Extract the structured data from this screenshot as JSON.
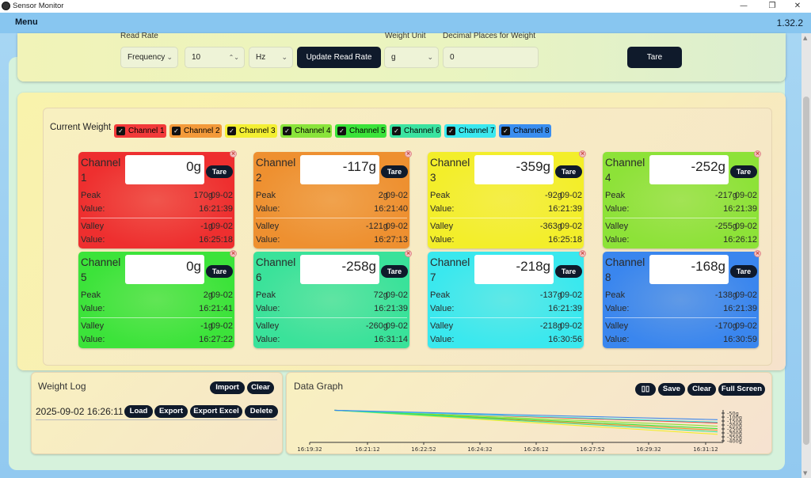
{
  "window": {
    "title": "Sensor Monitor",
    "minimize": "—",
    "restore": "❐",
    "close": "✕"
  },
  "menu": {
    "label": "Menu",
    "version": "1.32.2"
  },
  "settings": {
    "read_rate_label": "Read Rate",
    "mode_value": "Frequency",
    "rate_value": "10",
    "unit_value": "Hz",
    "update_button": "Update Read Rate",
    "weight_unit_label": "Weight Unit",
    "weight_unit_value": "g",
    "decimal_label": "Decimal Places for Weight",
    "decimal_value": "0",
    "tare_button": "Tare"
  },
  "current_weight": {
    "title": "Current Weight",
    "toggles": [
      {
        "label": "Channel 1",
        "color": "#f23a3a"
      },
      {
        "label": "Channel 2",
        "color": "#f39a3a"
      },
      {
        "label": "Channel 3",
        "color": "#f3ef33"
      },
      {
        "label": "Channel 4",
        "color": "#8ae43a"
      },
      {
        "label": "Channel 5",
        "color": "#3be33a"
      },
      {
        "label": "Channel 6",
        "color": "#3be3a0"
      },
      {
        "label": "Channel 7",
        "color": "#3be8ef"
      },
      {
        "label": "Channel 8",
        "color": "#3a8ef0"
      }
    ],
    "peak_label": "Peak",
    "valley_label": "Valley",
    "value_label": "Value:",
    "tare_label": "Tare",
    "channels": [
      {
        "name": "Channel 1",
        "value": "0g",
        "peak_val": "170g",
        "peak_date": "09-02",
        "peak_time": "16:21:39",
        "valley_val": "-1g",
        "valley_date": "09-02",
        "valley_time": "16:25:18",
        "color": "#ee2f2f"
      },
      {
        "name": "Channel 2",
        "value": "-117g",
        "peak_val": "2g",
        "peak_date": "09-02",
        "peak_time": "16:21:40",
        "valley_val": "-121g",
        "valley_date": "09-02",
        "valley_time": "16:27:13",
        "color": "#ee9030"
      },
      {
        "name": "Channel 3",
        "value": "-359g",
        "peak_val": "-92g",
        "peak_date": "09-02",
        "peak_time": "16:21:39",
        "valley_val": "-363g",
        "valley_date": "09-02",
        "valley_time": "16:25:18",
        "color": "#f3ee2a"
      },
      {
        "name": "Channel 4",
        "value": "-252g",
        "peak_val": "-217g",
        "peak_date": "09-02",
        "peak_time": "16:21:39",
        "valley_val": "-255g",
        "valley_date": "09-02",
        "valley_time": "16:26:12",
        "color": "#8de238"
      },
      {
        "name": "Channel 5",
        "value": "0g",
        "peak_val": "2g",
        "peak_date": "09-02",
        "peak_time": "16:21:41",
        "valley_val": "-1g",
        "valley_date": "09-02",
        "valley_time": "16:27:22",
        "color": "#3ce33a"
      },
      {
        "name": "Channel 6",
        "value": "-258g",
        "peak_val": "72g",
        "peak_date": "09-02",
        "peak_time": "16:21:39",
        "valley_val": "-260g",
        "valley_date": "09-02",
        "valley_time": "16:31:14",
        "color": "#3ae29a"
      },
      {
        "name": "Channel 7",
        "value": "-218g",
        "peak_val": "-137g",
        "peak_date": "09-02",
        "peak_time": "16:21:39",
        "valley_val": "-218g",
        "valley_date": "09-02",
        "valley_time": "16:30:56",
        "color": "#3ae8ee"
      },
      {
        "name": "Channel 8",
        "value": "-168g",
        "peak_val": "-138g",
        "peak_date": "09-02",
        "peak_time": "16:21:39",
        "valley_val": "-170g",
        "valley_date": "09-02",
        "valley_time": "16:30:59",
        "color": "#3a86ee"
      }
    ]
  },
  "weight_log": {
    "title": "Weight Log",
    "import": "Import",
    "clear": "Clear",
    "entry": "2025-09-02 16:26:11",
    "load": "Load",
    "export": "Export",
    "export_excel": "Export Excel",
    "delete": "Delete"
  },
  "data_graph": {
    "title": "Data Graph",
    "pause_icon": "pause-icon",
    "save": "Save",
    "clear": "Clear",
    "full_screen": "Full Screen"
  },
  "chart_data": {
    "type": "line",
    "x_ticks": [
      "16:19:32",
      "16:21:12",
      "16:22:52",
      "16:24:32",
      "16:26:12",
      "16:27:52",
      "16:29:32",
      "16:31:12"
    ],
    "y_ticks": [
      "-50g",
      "-100g",
      "-150g",
      "-200g",
      "-250g",
      "-300g",
      "-350g",
      "-400g"
    ],
    "ylim": [
      -400,
      0
    ],
    "series": [
      {
        "color": "#ee2f2f",
        "x": [
          "16:20:16",
          "16:31:33"
        ],
        "values": [
          -4,
          -160
        ]
      },
      {
        "color": "#ee9030",
        "x": [
          "16:20:16",
          "16:31:33"
        ],
        "values": [
          -4,
          -250
        ]
      },
      {
        "color": "#f3ee2a",
        "x": [
          "16:20:16",
          "16:31:33"
        ],
        "values": [
          -4,
          -300
        ]
      },
      {
        "color": "#8de238",
        "x": [
          "16:20:16",
          "16:31:33"
        ],
        "values": [
          -4,
          -200
        ]
      },
      {
        "color": "#3ce33a",
        "x": [
          "16:20:16",
          "16:31:33"
        ],
        "values": [
          -4,
          -230
        ]
      },
      {
        "color": "#3ae29a",
        "x": [
          "16:20:16",
          "16:31:33"
        ],
        "values": [
          -4,
          -270
        ]
      },
      {
        "color": "#3ae8ee",
        "x": [
          "16:20:16",
          "16:31:33"
        ],
        "values": [
          -4,
          -150
        ]
      },
      {
        "color": "#3a86ee",
        "x": [
          "16:20:16",
          "16:31:33"
        ],
        "values": [
          -4,
          -120
        ]
      }
    ]
  }
}
